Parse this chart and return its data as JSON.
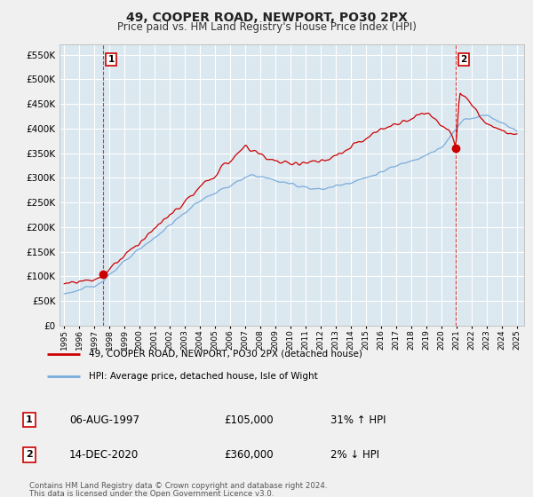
{
  "title": "49, COOPER ROAD, NEWPORT, PO30 2PX",
  "subtitle": "Price paid vs. HM Land Registry's House Price Index (HPI)",
  "ytick_values": [
    0,
    50000,
    100000,
    150000,
    200000,
    250000,
    300000,
    350000,
    400000,
    450000,
    500000,
    550000
  ],
  "ylim": [
    0,
    570000
  ],
  "xlim_start": 1994.7,
  "xlim_end": 2025.5,
  "point1_x": 1997.59,
  "point1_y": 105000,
  "point2_x": 2020.95,
  "point2_y": 360000,
  "legend_line1": "49, COOPER ROAD, NEWPORT, PO30 2PX (detached house)",
  "legend_line2": "HPI: Average price, detached house, Isle of Wight",
  "footer1": "Contains HM Land Registry data © Crown copyright and database right 2024.",
  "footer2": "This data is licensed under the Open Government Licence v3.0.",
  "red_color": "#cc0000",
  "blue_color": "#7aacdc",
  "plot_bg": "#dce8f0",
  "grid_color": "#ffffff",
  "fig_bg": "#f0f0f0",
  "annotation_table": [
    {
      "num": "1",
      "date": "06-AUG-1997",
      "price": "£105,000",
      "hpi": "31% ↑ HPI"
    },
    {
      "num": "2",
      "date": "14-DEC-2020",
      "price": "£360,000",
      "hpi": "2% ↓ HPI"
    }
  ]
}
